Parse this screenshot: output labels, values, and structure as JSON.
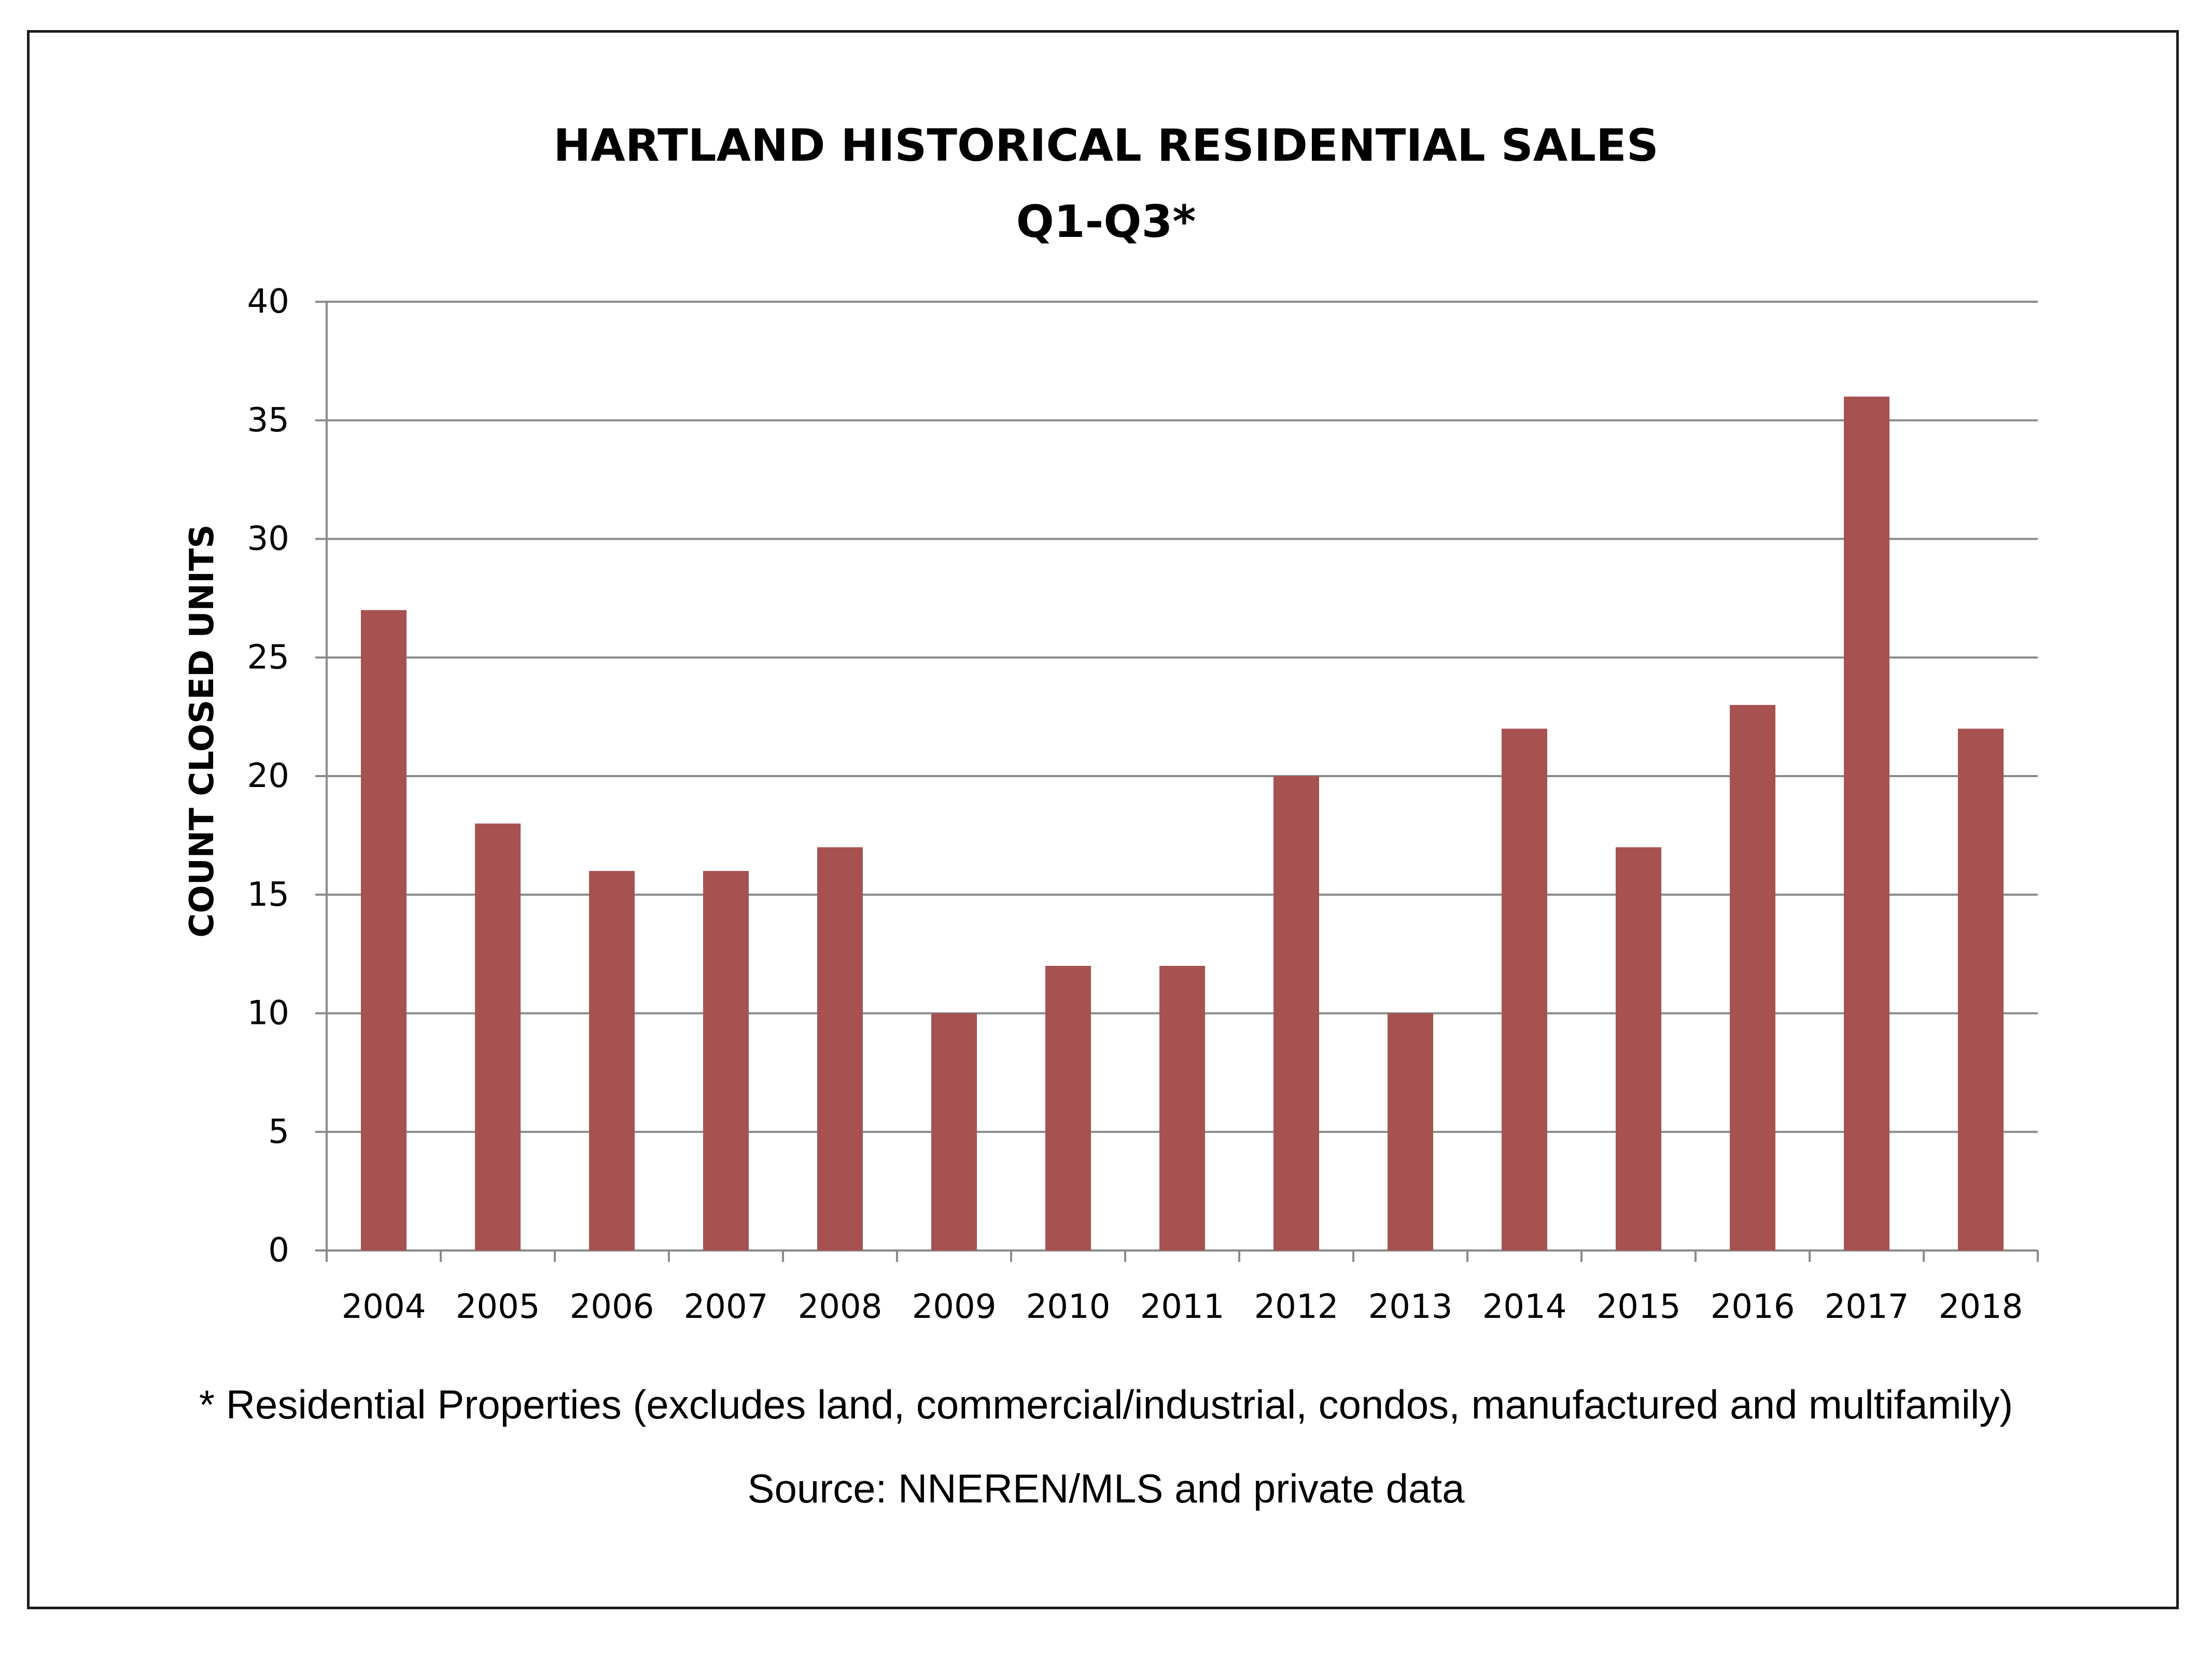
{
  "chart_data": {
    "type": "bar",
    "title": "HARTLAND HISTORICAL RESIDENTIAL SALES",
    "subtitle": "Q1-Q3*",
    "xlabel": "",
    "ylabel": "COUNT CLOSED UNITS",
    "ylim": [
      0,
      40
    ],
    "yticks": [
      0,
      5,
      10,
      15,
      20,
      25,
      30,
      35,
      40
    ],
    "grid": true,
    "legend": "none",
    "categories": [
      "2004",
      "2005",
      "2006",
      "2007",
      "2008",
      "2009",
      "2010",
      "2011",
      "2012",
      "2013",
      "2014",
      "2015",
      "2016",
      "2017",
      "2018"
    ],
    "values": [
      27,
      18,
      16,
      16,
      17,
      10,
      12,
      12,
      20,
      10,
      22,
      17,
      23,
      36,
      22
    ],
    "bar_color": "#a75250",
    "footnote": "* Residential Properties (excludes land, commercial/industrial, condos, manufactured and multifamily)",
    "source": "Source: NNEREN/MLS and private data"
  }
}
